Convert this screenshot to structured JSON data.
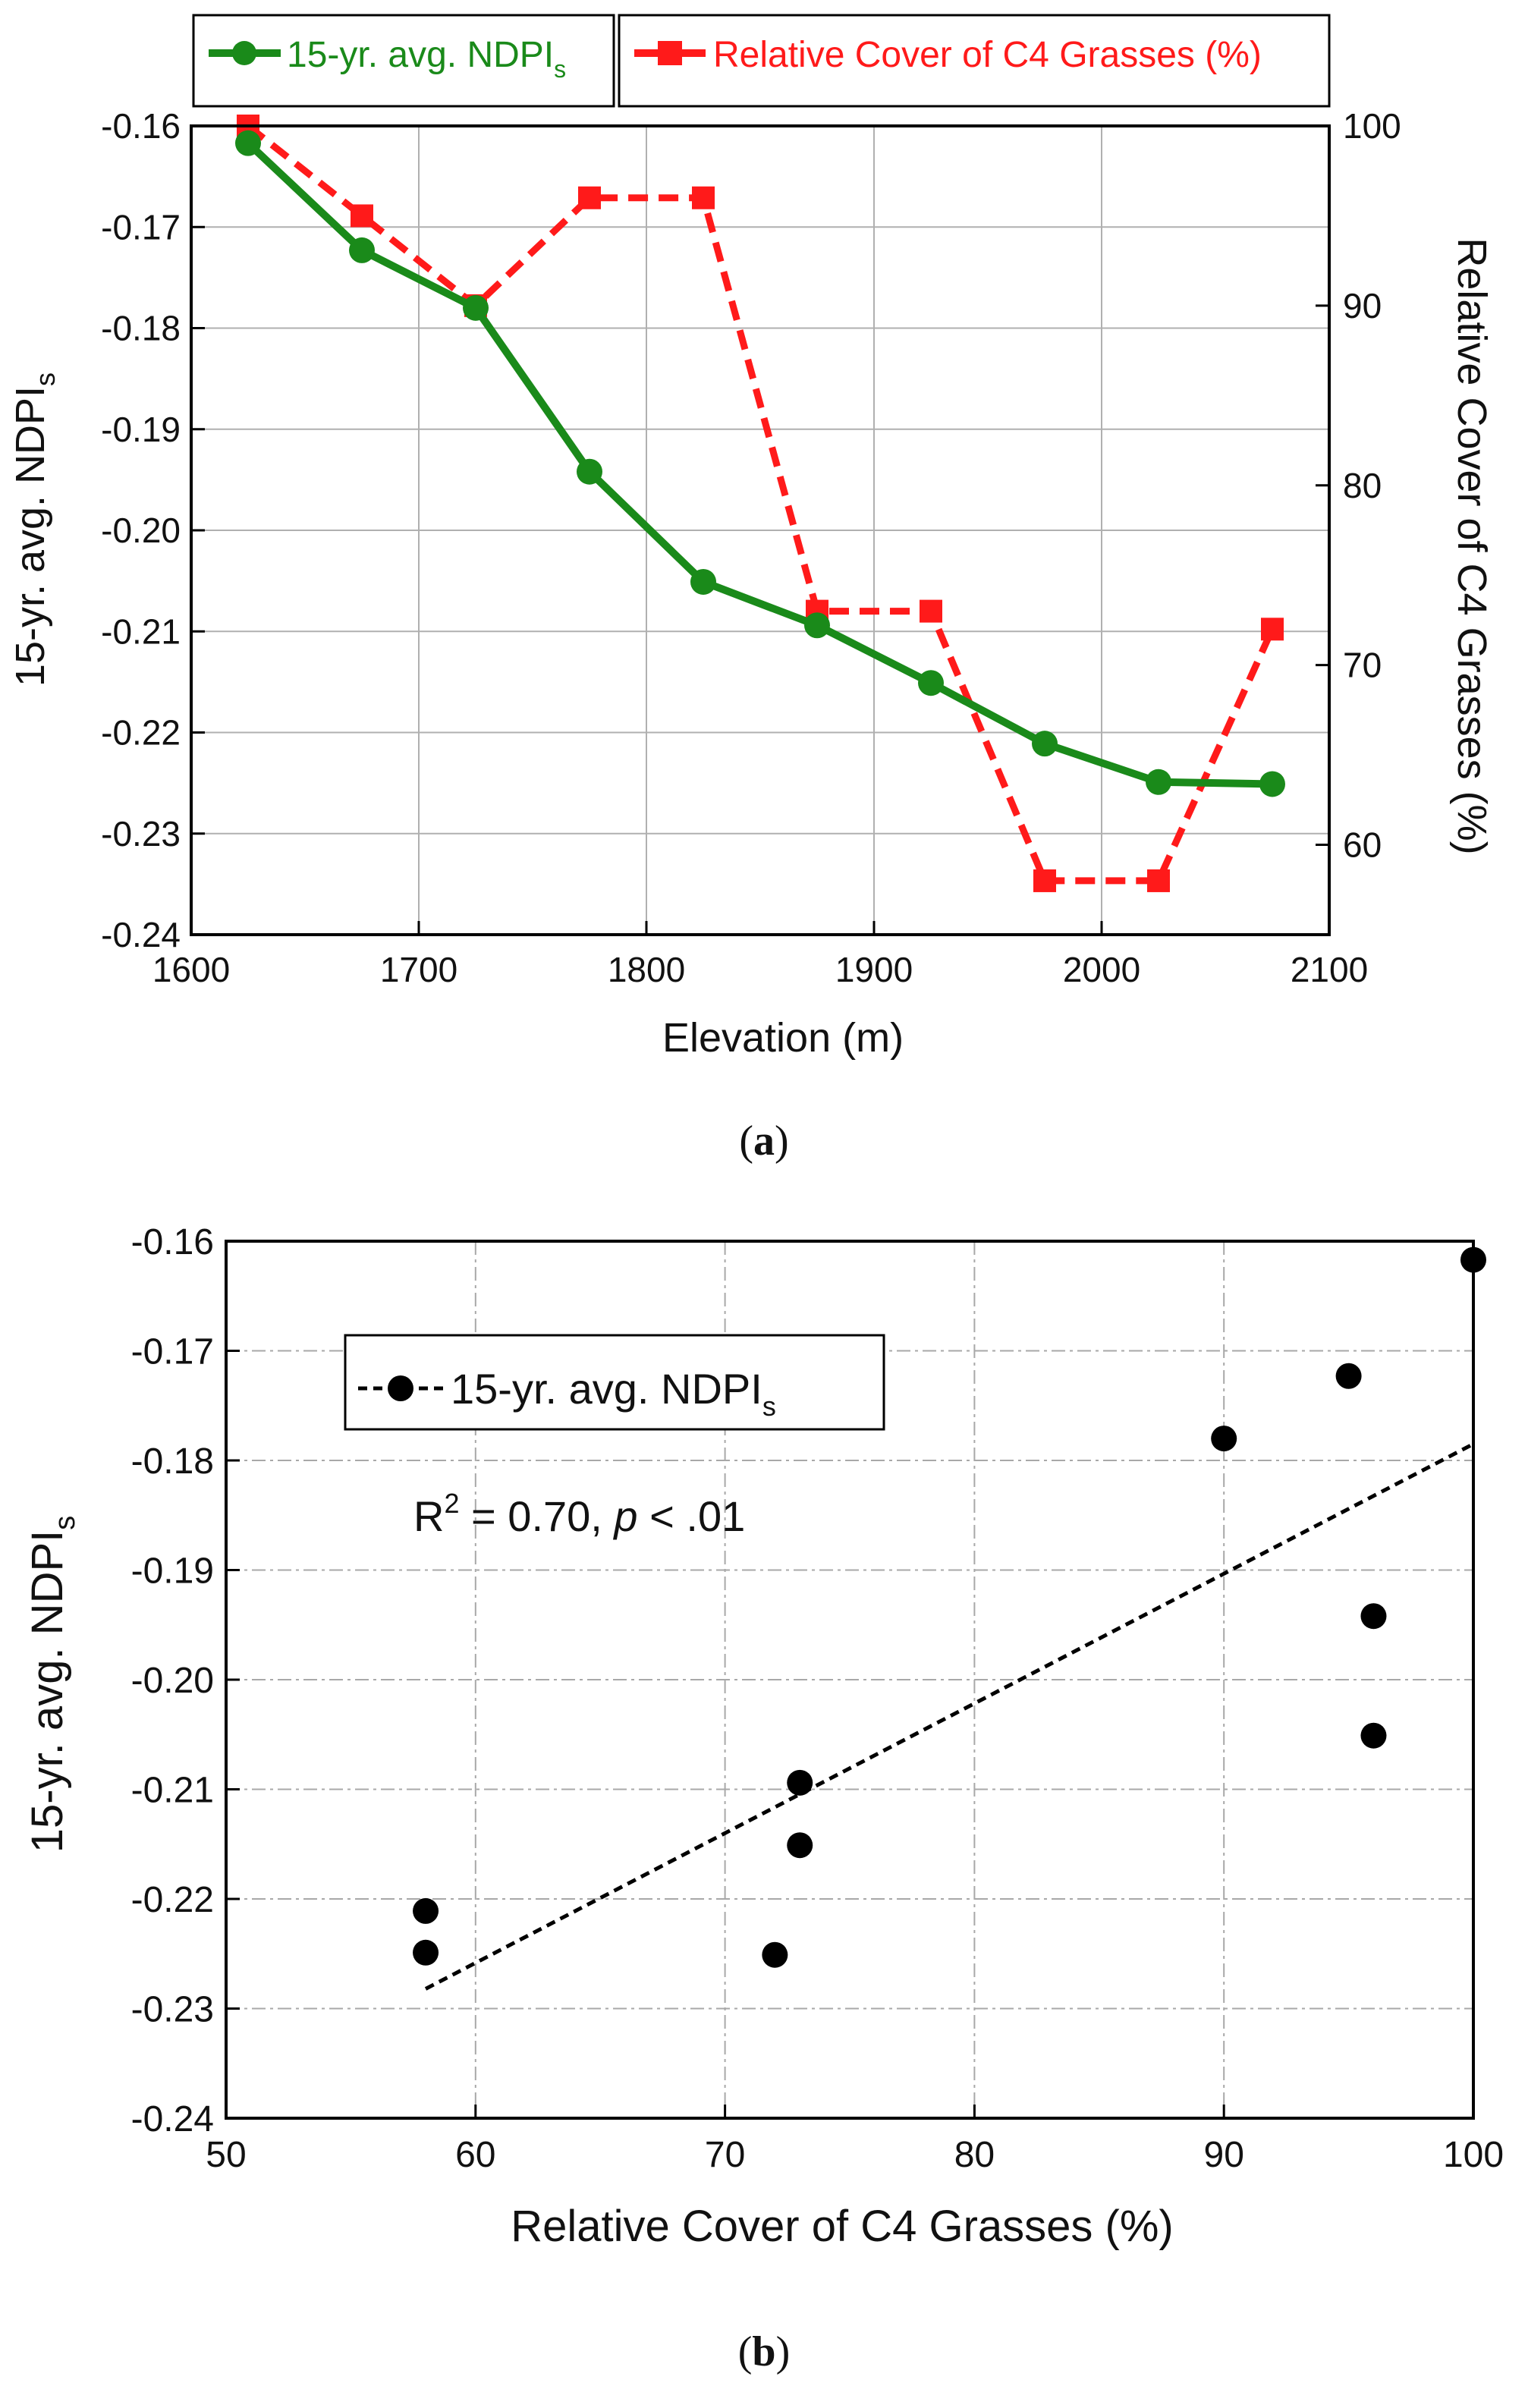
{
  "chart_data": [
    {
      "id": "a",
      "type": "line",
      "panel_label": "a",
      "xlabel": "Elevation (m)",
      "xlim": [
        1600,
        2100
      ],
      "xticks": [
        1600,
        1700,
        1800,
        1900,
        2000,
        2100
      ],
      "ylabel_left": "15-yr. avg. NDPI",
      "ylabel_left_sub": "s",
      "ylim_left": [
        -0.24,
        -0.16
      ],
      "yticks_left": [
        "-0.24",
        "-0.23",
        "-0.22",
        "-0.21",
        "-0.20",
        "-0.19",
        "-0.18",
        "-0.17",
        "-0.16"
      ],
      "ylabel_right": "Relative Cover of C4 Grasses (%)",
      "ylim_right": [
        55,
        100
      ],
      "yticks_right": [
        "60",
        "70",
        "80",
        "90",
        "100"
      ],
      "grid": true,
      "legend": {
        "placement": "top",
        "entries": [
          {
            "label": "15-yr. avg. NDPI",
            "sub": "s",
            "color": "#1a8a1a"
          },
          {
            "label": "Relative Cover of C4 Grasses (%)",
            "sub": "",
            "color": "#ff1a1a"
          }
        ]
      },
      "series": [
        {
          "name": "15-yr. avg. NDPIs",
          "axis": "left",
          "color": "#1a8a1a",
          "marker": "circle",
          "x": [
            1625,
            1675,
            1725,
            1775,
            1825,
            1875,
            1925,
            1975,
            2025,
            2075
          ],
          "y": [
            -0.1617,
            -0.1723,
            -0.178,
            -0.1942,
            -0.2051,
            -0.2094,
            -0.2151,
            -0.2211,
            -0.2249,
            -0.2251
          ]
        },
        {
          "name": "Relative Cover of C4 Grasses (%)",
          "axis": "right",
          "color": "#ff1a1a",
          "marker": "square",
          "dashed": true,
          "x": [
            1625,
            1675,
            1725,
            1775,
            1825,
            1875,
            1925,
            1975,
            2025,
            2075
          ],
          "y": [
            100,
            95,
            90,
            96,
            96,
            73,
            73,
            58,
            58,
            72
          ]
        }
      ]
    },
    {
      "id": "b",
      "type": "scatter",
      "panel_label": "b",
      "xlabel": "Relative Cover of C4 Grasses (%)",
      "xlim": [
        50,
        100
      ],
      "xticks": [
        "50",
        "60",
        "70",
        "80",
        "90",
        "100"
      ],
      "ylabel": "15-yr. avg. NDPI",
      "ylabel_sub": "s",
      "ylim": [
        -0.24,
        -0.16
      ],
      "yticks": [
        "-0.24",
        "-0.23",
        "-0.22",
        "-0.21",
        "-0.20",
        "-0.19",
        "-0.18",
        "-0.17",
        "-0.16"
      ],
      "grid": true,
      "legend": {
        "placement": "upper-left",
        "label": "15-yr. avg. NDPI",
        "sub": "s"
      },
      "annotation": {
        "r2_text": "R",
        "r2_sup": "2",
        "r2_value": " = 0.70, ",
        "p_text": "p",
        "p_rest": " < .01"
      },
      "series": [
        {
          "name": "15-yr. avg. NDPIs",
          "color": "#000000",
          "x": [
            100,
            95,
            90,
            96,
            96,
            73,
            73,
            58,
            58,
            72
          ],
          "y": [
            -0.1617,
            -0.1723,
            -0.178,
            -0.1942,
            -0.2051,
            -0.2094,
            -0.2151,
            -0.2211,
            -0.2249,
            -0.2251
          ]
        }
      ],
      "trendline": {
        "x": [
          58,
          100
        ],
        "y": [
          -0.2282,
          -0.1785
        ]
      }
    }
  ]
}
